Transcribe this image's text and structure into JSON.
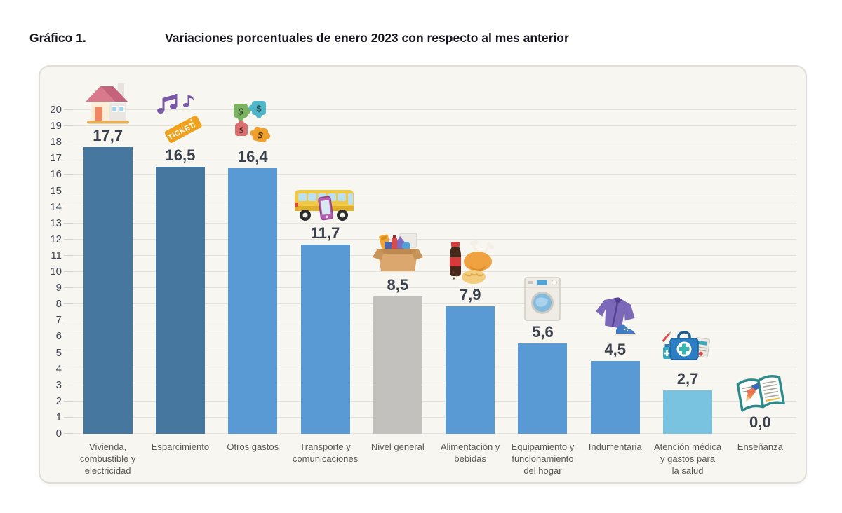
{
  "header": {
    "figure_label": "Gráfico 1.",
    "title": "Variaciones porcentuales de enero 2023 con respecto al mes anterior"
  },
  "colors": {
    "dark_blue": "#45779F",
    "blue": "#5A9AD4",
    "gray": "#C2C1BE",
    "light_blue": "#79C3E1"
  },
  "icon_text": {
    "ticket": "TICKET",
    "dollar": "$"
  },
  "chart_data": {
    "type": "bar",
    "title": "Variaciones porcentuales de enero 2023 con respecto al mes anterior",
    "xlabel": "",
    "ylabel": "",
    "ylim": [
      0,
      20
    ],
    "ytick_step": 1,
    "grid": true,
    "legend": "none",
    "categories": [
      "Vivienda,\ncombustible y\nelectricidad",
      "Esparcimiento",
      "Otros gastos",
      "Transporte y\ncomunicaciones",
      "Nivel general",
      "Alimentación y\nbebidas",
      "Equipamiento y\nfuncionamiento\ndel hogar",
      "Indumentaria",
      "Atención médica\ny gastos para\nla salud",
      "Enseñanza"
    ],
    "values": [
      17.7,
      16.5,
      16.4,
      11.7,
      8.5,
      7.9,
      5.6,
      4.5,
      2.7,
      0.0
    ],
    "value_labels": [
      "17,7",
      "16,5",
      "16,4",
      "11,7",
      "8,5",
      "7,9",
      "5,6",
      "4,5",
      "2,7",
      "0,0"
    ],
    "bar_color_keys": [
      "dark_blue",
      "dark_blue",
      "blue",
      "blue",
      "gray",
      "blue",
      "blue",
      "blue",
      "light_blue",
      "blue"
    ],
    "icons": [
      "house-icon",
      "music-ticket-icon",
      "puzzle-money-icon",
      "bus-phone-icon",
      "box-goods-icon",
      "food-drinks-icon",
      "washing-machine-icon",
      "clothing-icon",
      "medical-kit-icon",
      "books-icon"
    ]
  }
}
